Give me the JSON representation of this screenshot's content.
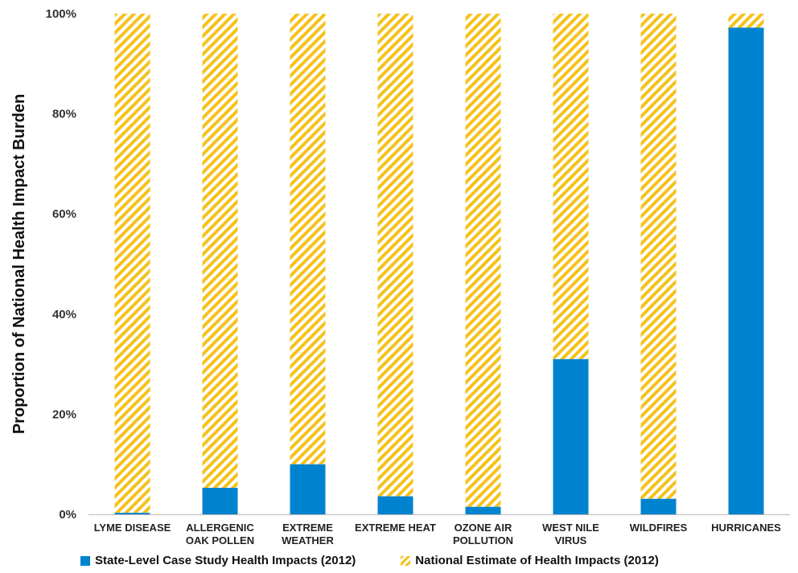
{
  "chart_data": {
    "type": "bar",
    "stacked": true,
    "ylabel": "Proportion of National Health Impact Burden",
    "ylim": [
      0,
      100
    ],
    "yticks": [
      "0%",
      "20%",
      "40%",
      "60%",
      "80%",
      "100%"
    ],
    "categories": [
      [
        "LYME DISEASE"
      ],
      [
        "ALLERGENIC",
        "OAK POLLEN"
      ],
      [
        "EXTREME",
        "WEATHER"
      ],
      [
        "EXTREME HEAT"
      ],
      [
        "OZONE AIR",
        "POLLUTION"
      ],
      [
        "WEST NILE",
        "VIRUS"
      ],
      [
        "WILDFIRES"
      ],
      [
        "HURRICANES"
      ]
    ],
    "series": [
      {
        "name": "State-Level Case Study Health Impacts (2012)",
        "color": "#0083cf",
        "pattern": "solid",
        "values": [
          0.3,
          5.3,
          10,
          3.6,
          1.5,
          31,
          3.1,
          97.2
        ]
      },
      {
        "name": "National Estimate of Health Impacts (2012)",
        "color": "#f5c21b",
        "pattern": "diagonal-stripes",
        "values": [
          99.7,
          94.7,
          90,
          96.4,
          98.5,
          69,
          96.9,
          2.8
        ]
      }
    ],
    "grid": false,
    "legend_position": "bottom"
  }
}
